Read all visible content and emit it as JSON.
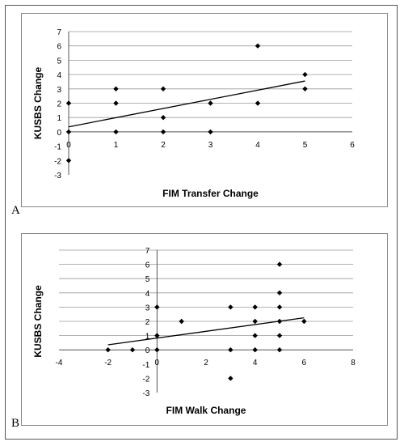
{
  "panel_labels": [
    "A",
    "B"
  ],
  "chart_data": [
    {
      "type": "scatter",
      "title": "",
      "xlabel": "FIM Transfer Change",
      "ylabel": "KUSBS Change",
      "xlim": [
        0,
        6
      ],
      "ylim": [
        -3,
        7
      ],
      "xticks": [
        0,
        1,
        2,
        3,
        4,
        5,
        6
      ],
      "yticks": [
        -3,
        -2,
        -1,
        0,
        1,
        2,
        3,
        4,
        5,
        6,
        7
      ],
      "grid": "horizontal",
      "legend": "none",
      "marker_color": "#000000",
      "points": [
        {
          "x": 0,
          "y": 2
        },
        {
          "x": 0,
          "y": 0
        },
        {
          "x": 0,
          "y": -2
        },
        {
          "x": 1,
          "y": 3
        },
        {
          "x": 1,
          "y": 2
        },
        {
          "x": 1,
          "y": 0
        },
        {
          "x": 2,
          "y": 3
        },
        {
          "x": 2,
          "y": 1
        },
        {
          "x": 2,
          "y": 0
        },
        {
          "x": 3,
          "y": 2
        },
        {
          "x": 3,
          "y": 0
        },
        {
          "x": 4,
          "y": 6
        },
        {
          "x": 4,
          "y": 2
        },
        {
          "x": 5,
          "y": 4
        },
        {
          "x": 5,
          "y": 3
        }
      ],
      "trendline": {
        "x": [
          0,
          5
        ],
        "y": [
          0.35,
          3.55
        ]
      }
    },
    {
      "type": "scatter",
      "title": "",
      "xlabel": "FIM Walk Change",
      "ylabel": "KUSBS Change",
      "xlim": [
        -4,
        8
      ],
      "ylim": [
        -3,
        7
      ],
      "xticks": [
        -4,
        -2,
        0,
        2,
        4,
        6,
        8
      ],
      "yticks": [
        -3,
        -2,
        -1,
        0,
        1,
        2,
        3,
        4,
        5,
        6,
        7
      ],
      "grid": "horizontal",
      "legend": "none",
      "marker_color": "#000000",
      "points": [
        {
          "x": -2,
          "y": 0
        },
        {
          "x": -1,
          "y": 0
        },
        {
          "x": 0,
          "y": 3
        },
        {
          "x": 0,
          "y": 1
        },
        {
          "x": 0,
          "y": 0
        },
        {
          "x": 1,
          "y": 2
        },
        {
          "x": 3,
          "y": 3
        },
        {
          "x": 3,
          "y": 0
        },
        {
          "x": 3,
          "y": -2
        },
        {
          "x": 4,
          "y": 3
        },
        {
          "x": 4,
          "y": 2
        },
        {
          "x": 4,
          "y": 1
        },
        {
          "x": 4,
          "y": 0
        },
        {
          "x": 5,
          "y": 6
        },
        {
          "x": 5,
          "y": 4
        },
        {
          "x": 5,
          "y": 3
        },
        {
          "x": 5,
          "y": 2
        },
        {
          "x": 5,
          "y": 1
        },
        {
          "x": 5,
          "y": 0
        },
        {
          "x": 6,
          "y": 2
        }
      ],
      "trendline": {
        "x": [
          -2,
          6
        ],
        "y": [
          0.35,
          2.25
        ]
      }
    }
  ]
}
